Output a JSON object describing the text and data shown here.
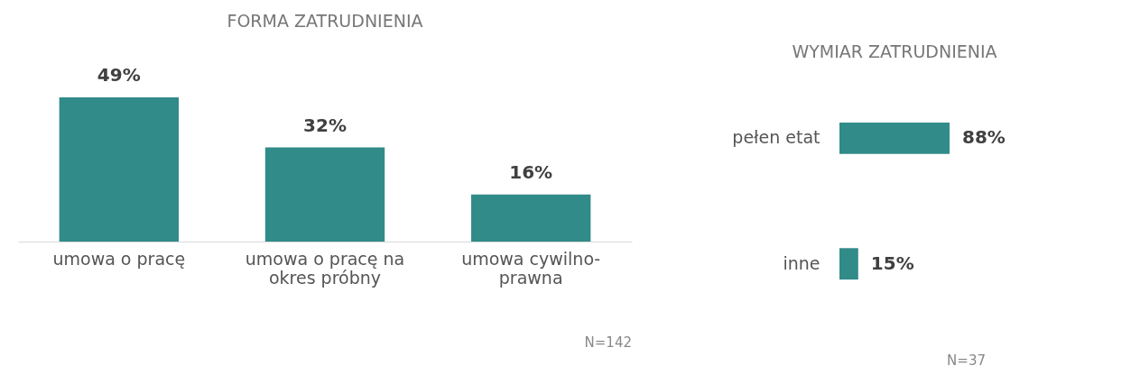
{
  "chart_data": [
    {
      "type": "bar",
      "title": "FORMA ZATRUDNIENIA",
      "categories": [
        "umowa o pracę",
        "umowa o pracę na\nokres próbny",
        "umowa cywilno-\nprawna"
      ],
      "values": [
        49,
        32,
        16
      ],
      "value_labels": [
        "49%",
        "32%",
        "16%"
      ],
      "color": "#318b89",
      "grid": false,
      "annotations": [
        "N=142"
      ]
    },
    {
      "type": "bar",
      "orientation": "horizontal",
      "title": "WYMIAR ZATRUDNIENIA",
      "categories": [
        "pełen etat",
        "inne"
      ],
      "values": [
        88,
        15
      ],
      "value_labels": [
        "88%",
        "15%"
      ],
      "color": "#318b89",
      "grid": false,
      "annotations": [
        "N=37"
      ]
    }
  ]
}
